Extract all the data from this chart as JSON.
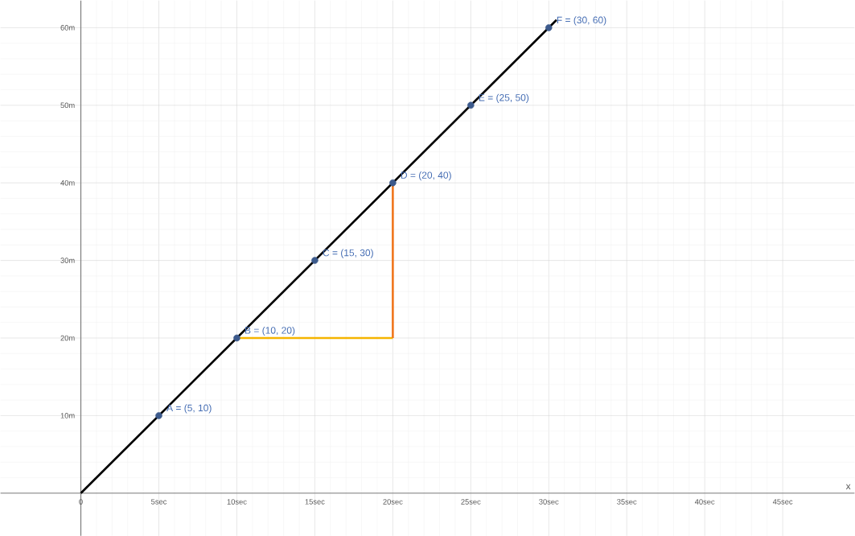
{
  "chart_data": {
    "type": "scatter",
    "xlabel": "x",
    "xlim": [
      -5.15,
      49.6
    ],
    "ylim": [
      -5.5,
      63.5
    ],
    "xticks": [
      {
        "value": 0,
        "label": "0"
      },
      {
        "value": 5,
        "label": "5sec"
      },
      {
        "value": 10,
        "label": "10sec"
      },
      {
        "value": 15,
        "label": "15sec"
      },
      {
        "value": 20,
        "label": "20sec"
      },
      {
        "value": 25,
        "label": "25sec"
      },
      {
        "value": 30,
        "label": "30sec"
      },
      {
        "value": 35,
        "label": "35sec"
      },
      {
        "value": 40,
        "label": "40sec"
      },
      {
        "value": 45,
        "label": "45sec"
      }
    ],
    "yticks": [
      {
        "value": 0,
        "label": null
      },
      {
        "value": 10,
        "label": "10m"
      },
      {
        "value": 20,
        "label": "20m"
      },
      {
        "value": 30,
        "label": "30m"
      },
      {
        "value": 40,
        "label": "40m"
      },
      {
        "value": 50,
        "label": "50m"
      },
      {
        "value": 60,
        "label": "60m"
      }
    ],
    "grid": true,
    "marker": "circle",
    "series": [
      {
        "type": "line",
        "marker": "none",
        "color": "#000000",
        "x": [
          0,
          30.5
        ],
        "values": [
          0,
          61
        ]
      },
      {
        "type": "line",
        "marker": "none",
        "color": "#f5b400",
        "x": [
          10,
          20
        ],
        "values": [
          20,
          20
        ]
      },
      {
        "type": "line",
        "marker": "none",
        "color": "#f07820",
        "x": [
          20,
          20
        ],
        "values": [
          20,
          40
        ]
      },
      {
        "color": "#3c5a8c",
        "x": [
          5,
          10,
          15,
          20,
          25,
          30
        ],
        "values": [
          10,
          20,
          30,
          40,
          50,
          60
        ]
      }
    ],
    "annotations": [
      {
        "text": "A = (5, 10)",
        "x": 5,
        "y": 10
      },
      {
        "text": "B = (10, 20)",
        "x": 10,
        "y": 20
      },
      {
        "text": "C = (15, 30)",
        "x": 15,
        "y": 30
      },
      {
        "text": "D = (20, 40)",
        "x": 20,
        "y": 40
      },
      {
        "text": "E = (25, 50)",
        "x": 25,
        "y": 50
      },
      {
        "text": "F = (30, 60)",
        "x": 30,
        "y": 60
      }
    ]
  }
}
